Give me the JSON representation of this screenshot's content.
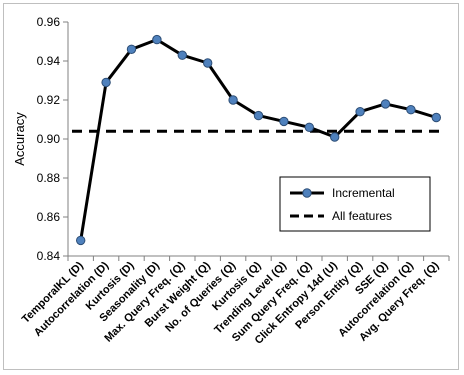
{
  "chart_data": {
    "type": "line",
    "ylabel": "Accuracy",
    "ylim": [
      0.84,
      0.96
    ],
    "yticks": [
      "0.84",
      "0.86",
      "0.88",
      "0.90",
      "0.92",
      "0.94",
      "0.96"
    ],
    "grid": false,
    "legend_position": "center-right",
    "categories": [
      "TemporalKL (D)",
      "Autocorrelation (D)",
      "Kurtosis (D)",
      "Seasonality (D)",
      "Max. Query Freq. (Q)",
      "Burst Weight (Q)",
      "No. of Queries (Q)",
      "Kurtosis (Q)",
      "Trending Level (Q)",
      "Sum Query Freq. (Q)",
      "Click Entropy 14d (U)",
      "Person Entity (Q)",
      "SSE (Q)",
      "Autocorrelation (Q)",
      "Avg. Query Freq. (Q)"
    ],
    "series": [
      {
        "name": "Incremental",
        "style": "line-with-markers",
        "color": "#000000",
        "marker_color": "#4f81bd",
        "values": [
          0.848,
          0.929,
          0.946,
          0.951,
          0.943,
          0.939,
          0.92,
          0.912,
          0.909,
          0.906,
          0.901,
          0.914,
          0.918,
          0.915,
          0.911
        ]
      },
      {
        "name": "All features",
        "style": "dashed",
        "color": "#000000",
        "values": [
          0.904,
          0.904,
          0.904,
          0.904,
          0.904,
          0.904,
          0.904,
          0.904,
          0.904,
          0.904,
          0.904,
          0.904,
          0.904,
          0.904,
          0.904
        ]
      }
    ]
  }
}
